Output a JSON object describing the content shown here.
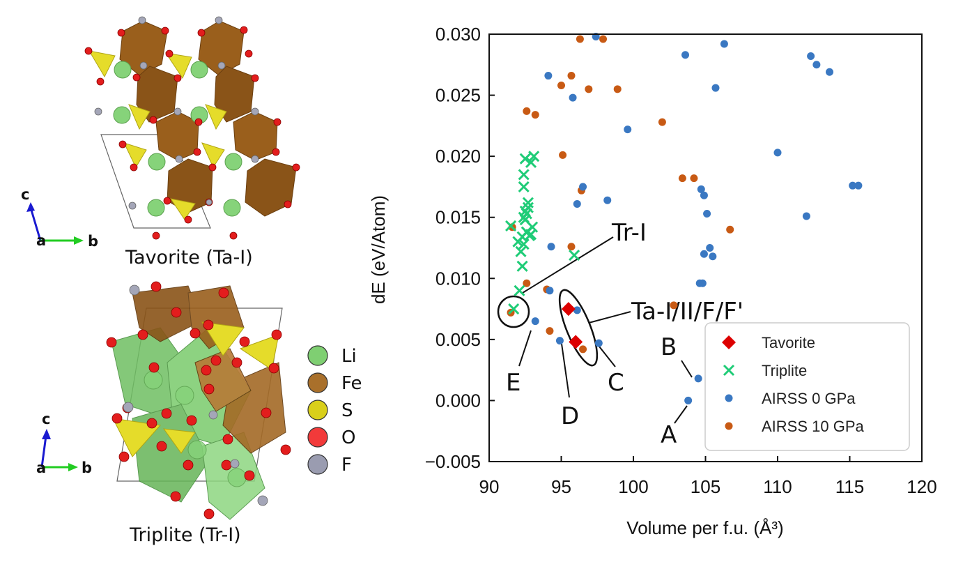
{
  "structures": [
    {
      "caption": "Tavorite (Ta-I)"
    },
    {
      "caption": "Triplite (Tr-I)"
    }
  ],
  "crystal_axes": {
    "c": "c",
    "a": "a",
    "b": "b"
  },
  "element_legend": [
    {
      "label": "Li",
      "color": "#7fcf72"
    },
    {
      "label": "Fe",
      "color": "#a9702b"
    },
    {
      "label": "S",
      "color": "#d9cf1a"
    },
    {
      "label": "O",
      "color": "#f23a3a"
    },
    {
      "label": "F",
      "color": "#9a9cb0"
    }
  ],
  "colors": {
    "tavorite": "#dd0000",
    "triplite": "#1fcc77",
    "airss0": "#3a78c2",
    "airss10": "#c85a14",
    "fe_poly": "#9a5f1c",
    "li_poly": "#6fbf62",
    "s_poly": "#e5dc2a"
  },
  "annotations": {
    "tr_i": "Tr-I",
    "ta": "Ta-I/II/F/F'",
    "A": "A",
    "B": "B",
    "C": "C",
    "D": "D",
    "E": "E"
  },
  "chart_data": {
    "type": "scatter",
    "xlabel": "Volume per f.u. (Å³)",
    "ylabel": "dE (eV/Atom)",
    "xlim": [
      90,
      120
    ],
    "ylim": [
      -0.005,
      0.03
    ],
    "xticks": [
      "90",
      "95",
      "100",
      "105",
      "110",
      "115",
      "120"
    ],
    "yticks": [
      "−0.005",
      "0.000",
      "0.005",
      "0.010",
      "0.015",
      "0.020",
      "0.025",
      "0.030"
    ],
    "legend_position": "lower-right",
    "series": [
      {
        "name": "Tavorite",
        "marker": "diamond",
        "color": "#dd0000",
        "points": [
          [
            95.5,
            0.0075
          ],
          [
            96.0,
            0.0048
          ]
        ]
      },
      {
        "name": "Triplite",
        "marker": "x",
        "color": "#1fcc77",
        "points": [
          [
            91.7,
            0.0075
          ],
          [
            92.1,
            0.009
          ],
          [
            92.3,
            0.011
          ],
          [
            92.2,
            0.0122
          ],
          [
            92.0,
            0.013
          ],
          [
            92.4,
            0.0128
          ],
          [
            92.3,
            0.0134
          ],
          [
            92.6,
            0.0138
          ],
          [
            92.8,
            0.0135
          ],
          [
            93.0,
            0.0142
          ],
          [
            92.9,
            0.0136
          ],
          [
            91.5,
            0.0143
          ],
          [
            92.5,
            0.0148
          ],
          [
            92.6,
            0.0153
          ],
          [
            92.4,
            0.015
          ],
          [
            92.7,
            0.0158
          ],
          [
            92.5,
            0.0155
          ],
          [
            92.7,
            0.0162
          ],
          [
            92.4,
            0.0175
          ],
          [
            92.4,
            0.0185
          ],
          [
            92.5,
            0.0198
          ],
          [
            92.9,
            0.0195
          ],
          [
            93.1,
            0.02
          ],
          [
            95.9,
            0.0119
          ]
        ]
      },
      {
        "name": "AIRSS 0 GPa",
        "marker": "circle",
        "color": "#3a78c2",
        "points": [
          [
            103.8,
            0.0
          ],
          [
            104.5,
            0.0018
          ],
          [
            97.6,
            0.0047
          ],
          [
            94.9,
            0.0049
          ],
          [
            93.2,
            0.0065
          ],
          [
            96.1,
            0.0074
          ],
          [
            94.2,
            0.009
          ],
          [
            104.8,
            0.0096
          ],
          [
            104.6,
            0.0096
          ],
          [
            104.9,
            0.012
          ],
          [
            105.3,
            0.0125
          ],
          [
            105.5,
            0.0118
          ],
          [
            94.3,
            0.0126
          ],
          [
            96.1,
            0.0161
          ],
          [
            98.2,
            0.0164
          ],
          [
            105.1,
            0.0153
          ],
          [
            104.9,
            0.0168
          ],
          [
            104.7,
            0.0173
          ],
          [
            96.5,
            0.0175
          ],
          [
            99.6,
            0.0222
          ],
          [
            110.0,
            0.0203
          ],
          [
            112.0,
            0.0151
          ],
          [
            115.2,
            0.0176
          ],
          [
            115.6,
            0.0176
          ],
          [
            94.1,
            0.0266
          ],
          [
            95.8,
            0.0248
          ],
          [
            97.4,
            0.0298
          ],
          [
            103.6,
            0.0283
          ],
          [
            105.7,
            0.0256
          ],
          [
            106.3,
            0.0292
          ],
          [
            112.3,
            0.0282
          ],
          [
            112.7,
            0.0275
          ],
          [
            113.6,
            0.0269
          ]
        ]
      },
      {
        "name": "AIRSS 10 GPa",
        "marker": "circle",
        "color": "#c85a14",
        "points": [
          [
            91.5,
            0.0072
          ],
          [
            96.5,
            0.0042
          ],
          [
            94.2,
            0.0057
          ],
          [
            102.8,
            0.0078
          ],
          [
            94.0,
            0.0091
          ],
          [
            92.6,
            0.0096
          ],
          [
            95.7,
            0.0126
          ],
          [
            91.6,
            0.0142
          ],
          [
            96.4,
            0.0172
          ],
          [
            103.4,
            0.0182
          ],
          [
            104.2,
            0.0182
          ],
          [
            106.7,
            0.014
          ],
          [
            95.1,
            0.0201
          ],
          [
            102.0,
            0.0228
          ],
          [
            92.6,
            0.0237
          ],
          [
            93.2,
            0.0234
          ],
          [
            95.0,
            0.0258
          ],
          [
            95.7,
            0.0266
          ],
          [
            96.9,
            0.0255
          ],
          [
            98.9,
            0.0255
          ],
          [
            96.3,
            0.0296
          ],
          [
            97.9,
            0.0296
          ]
        ]
      }
    ]
  }
}
